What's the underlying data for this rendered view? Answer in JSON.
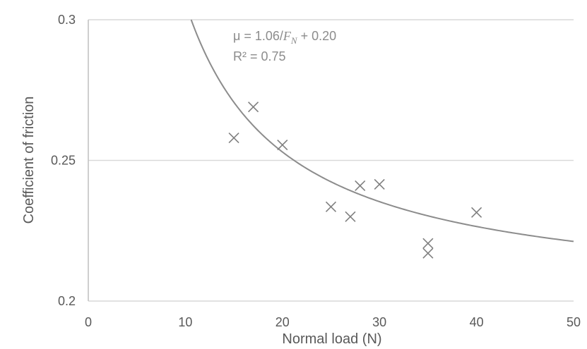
{
  "chart_data": {
    "type": "scatter",
    "xlabel": "Normal load (N)",
    "ylabel": "Coefficient of friction",
    "xlim": [
      0,
      50
    ],
    "ylim": [
      0.2,
      0.3
    ],
    "x_ticks": [
      "0",
      "10",
      "20",
      "30",
      "40",
      "50"
    ],
    "y_ticks": [
      "0.2",
      "0.25",
      "0.3"
    ],
    "grid": "horizontal",
    "marker": "x",
    "points": [
      {
        "x": 15,
        "y": 0.258
      },
      {
        "x": 17,
        "y": 0.269
      },
      {
        "x": 20,
        "y": 0.2555
      },
      {
        "x": 25,
        "y": 0.2335
      },
      {
        "x": 27,
        "y": 0.23
      },
      {
        "x": 28,
        "y": 0.241
      },
      {
        "x": 30,
        "y": 0.2415
      },
      {
        "x": 35,
        "y": 0.2205
      },
      {
        "x": 35,
        "y": 0.217
      },
      {
        "x": 40,
        "y": 0.2315
      }
    ],
    "trendline": {
      "a": 1.06,
      "b": 0.2
    },
    "annotations": {
      "equation_prefix": "μ = 1.06/",
      "equation_var": "F",
      "equation_sub": "N",
      "equation_suffix": " + 0.20",
      "r2": "R² = 0.75"
    },
    "colors": {
      "marker": "#7f7f7f",
      "trendline": "#8c8c8c",
      "grid": "#d9d9d9",
      "axis": "#bfbfbf"
    }
  }
}
